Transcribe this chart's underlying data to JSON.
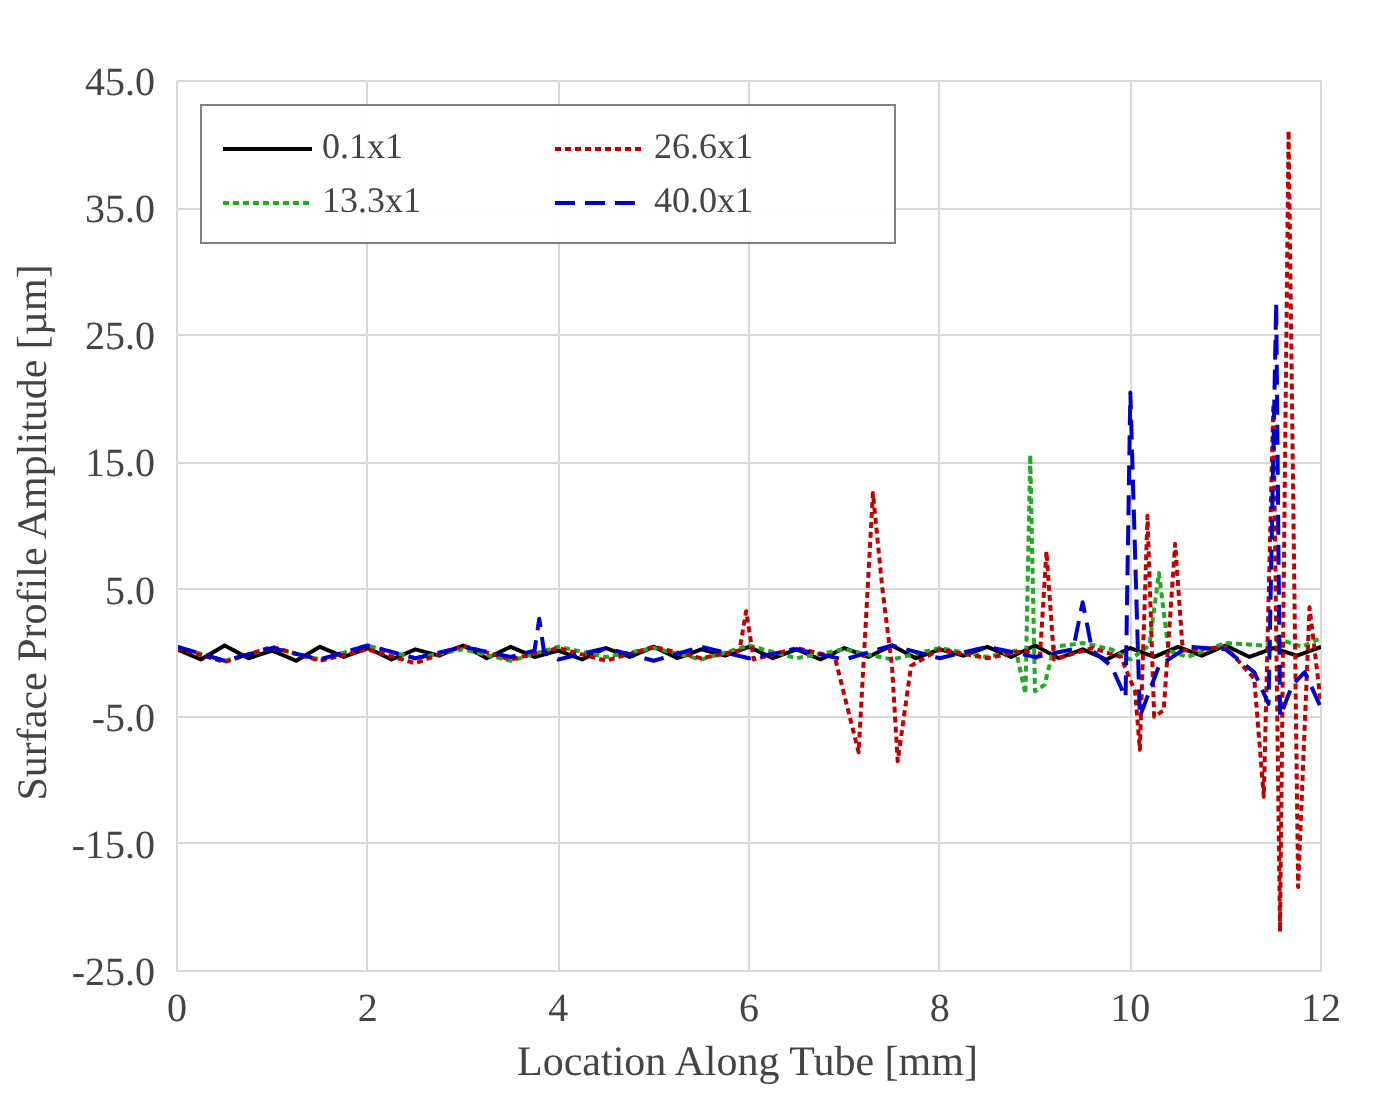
{
  "chart_data": {
    "type": "line",
    "xlabel": "Location Along Tube [mm]",
    "ylabel": "Surface Profile  Amplitude [µm]",
    "xlim": [
      0,
      12
    ],
    "xticks": [
      0,
      2,
      4,
      6,
      8,
      10,
      12
    ],
    "ylim": [
      -25,
      45
    ],
    "yticks": [
      {
        "value": -25,
        "label": "-25.0"
      },
      {
        "value": -15,
        "label": "-15.0"
      },
      {
        "value": -5,
        "label": "-5.0"
      },
      {
        "value": 5,
        "label": "5.0"
      },
      {
        "value": 15,
        "label": "15.0"
      },
      {
        "value": 25,
        "label": "25.0"
      },
      {
        "value": 35,
        "label": "35.0"
      },
      {
        "value": 45,
        "label": "45.0"
      }
    ],
    "grid": true,
    "legend": "top left",
    "marker": "none",
    "series": [
      {
        "name": "0.1x1",
        "color": "#000000",
        "line_style": "solid",
        "x": [
          0,
          0.25,
          0.5,
          0.75,
          1,
          1.25,
          1.5,
          1.75,
          2,
          2.25,
          2.5,
          2.75,
          3,
          3.25,
          3.5,
          3.75,
          4,
          4.25,
          4.5,
          4.75,
          5,
          5.25,
          5.5,
          5.75,
          6,
          6.25,
          6.5,
          6.75,
          7,
          7.25,
          7.5,
          7.75,
          8,
          8.25,
          8.5,
          8.75,
          9,
          9.25,
          9.5,
          9.75,
          10,
          10.25,
          10.5,
          10.75,
          11,
          11.25,
          11.5,
          11.75,
          12
        ],
        "values": [
          0.3,
          -0.5,
          0.6,
          -0.4,
          0.2,
          -0.6,
          0.5,
          -0.3,
          0.4,
          -0.5,
          0.3,
          -0.2,
          0.6,
          -0.4,
          0.5,
          -0.3,
          0.2,
          -0.5,
          0.4,
          -0.3,
          0.5,
          -0.4,
          0.3,
          -0.2,
          0.5,
          -0.4,
          0.3,
          -0.5,
          0.4,
          -0.3,
          0.6,
          -0.4,
          0.3,
          -0.2,
          0.5,
          -0.3,
          0.6,
          -0.4,
          0.3,
          -0.5,
          0.4,
          -0.3,
          0.5,
          -0.2,
          0.6,
          -0.3,
          0.4,
          -0.2,
          0.5
        ]
      },
      {
        "name": "13.3x1",
        "color": "#22aa22",
        "line_style": "dotted",
        "x": [
          0,
          0.5,
          1,
          1.5,
          2,
          2.5,
          3,
          3.5,
          4,
          4.5,
          5,
          5.5,
          6,
          6.5,
          7,
          7.5,
          8,
          8.5,
          8.8,
          8.9,
          8.95,
          9.0,
          9.1,
          9.2,
          9.5,
          9.8,
          10.0,
          10.2,
          10.3,
          10.4,
          10.6,
          11.0,
          11.4,
          11.6,
          11.8,
          12.0
        ],
        "values": [
          0.5,
          -0.6,
          0.4,
          -0.5,
          0.6,
          -0.4,
          0.3,
          -0.6,
          0.5,
          -0.3,
          0.4,
          -0.5,
          0.6,
          -0.4,
          0.3,
          -0.5,
          0.4,
          -0.3,
          0.2,
          -3.2,
          15.6,
          -3.0,
          -2.5,
          0.5,
          0.8,
          0.3,
          -0.5,
          0.6,
          6.3,
          0.2,
          -0.3,
          0.8,
          0.6,
          1.0,
          0.5,
          1.2
        ]
      },
      {
        "name": "26.6x1",
        "color": "#c00000",
        "line_style": "dotted",
        "x": [
          0,
          0.5,
          1,
          1.5,
          2,
          2.5,
          3,
          3.5,
          4,
          4.5,
          5,
          5.5,
          5.9,
          5.97,
          6.05,
          6.5,
          6.9,
          7.15,
          7.3,
          7.4,
          7.5,
          7.56,
          7.7,
          8.0,
          8.5,
          8.9,
          9.05,
          9.12,
          9.2,
          9.6,
          9.9,
          10.05,
          10.1,
          10.18,
          10.25,
          10.35,
          10.47,
          10.55,
          11.0,
          11.3,
          11.4,
          11.5,
          11.57,
          11.66,
          11.76,
          11.88,
          12.0
        ],
        "values": [
          0.4,
          -0.7,
          0.5,
          -0.6,
          0.3,
          -0.8,
          0.6,
          -0.5,
          0.4,
          -0.6,
          0.5,
          -0.4,
          0.2,
          3.3,
          -0.5,
          0.4,
          -0.3,
          -7.8,
          12.6,
          5.0,
          -1.0,
          -8.5,
          -1.0,
          0.3,
          -0.4,
          0.2,
          -0.5,
          8.0,
          -0.5,
          0.4,
          -0.3,
          -3.0,
          -7.6,
          10.8,
          -5.0,
          -4.5,
          8.6,
          0.2,
          0.5,
          -2.0,
          -11.3,
          19.6,
          -21.9,
          41.1,
          -18.4,
          3.6,
          -4.0
        ]
      },
      {
        "name": "40.0x1",
        "color": "#0000cc",
        "line_style": "dashed",
        "x": [
          0,
          0.5,
          1,
          1.5,
          2,
          2.5,
          3,
          3.5,
          3.75,
          3.8,
          3.85,
          4,
          4.5,
          5,
          5.5,
          6,
          6.5,
          7,
          7.5,
          8,
          8.5,
          9,
          9.4,
          9.5,
          9.6,
          9.8,
          9.95,
          10.0,
          10.1,
          10.3,
          10.6,
          11.0,
          11.3,
          11.45,
          11.53,
          11.57,
          11.7,
          11.83,
          12.0
        ],
        "values": [
          0.5,
          -0.6,
          0.4,
          -0.5,
          0.6,
          -0.4,
          0.5,
          -0.3,
          0.2,
          2.7,
          0.1,
          -0.5,
          0.4,
          -0.6,
          0.5,
          -0.4,
          0.3,
          -0.5,
          0.6,
          -0.4,
          0.5,
          -0.3,
          0.3,
          4.0,
          0.2,
          -1.0,
          -3.5,
          20.5,
          -5.0,
          -1.0,
          0.5,
          0.3,
          -1.5,
          -4.0,
          27.6,
          -5.0,
          -2.5,
          -1.5,
          -4.3
        ]
      }
    ]
  }
}
